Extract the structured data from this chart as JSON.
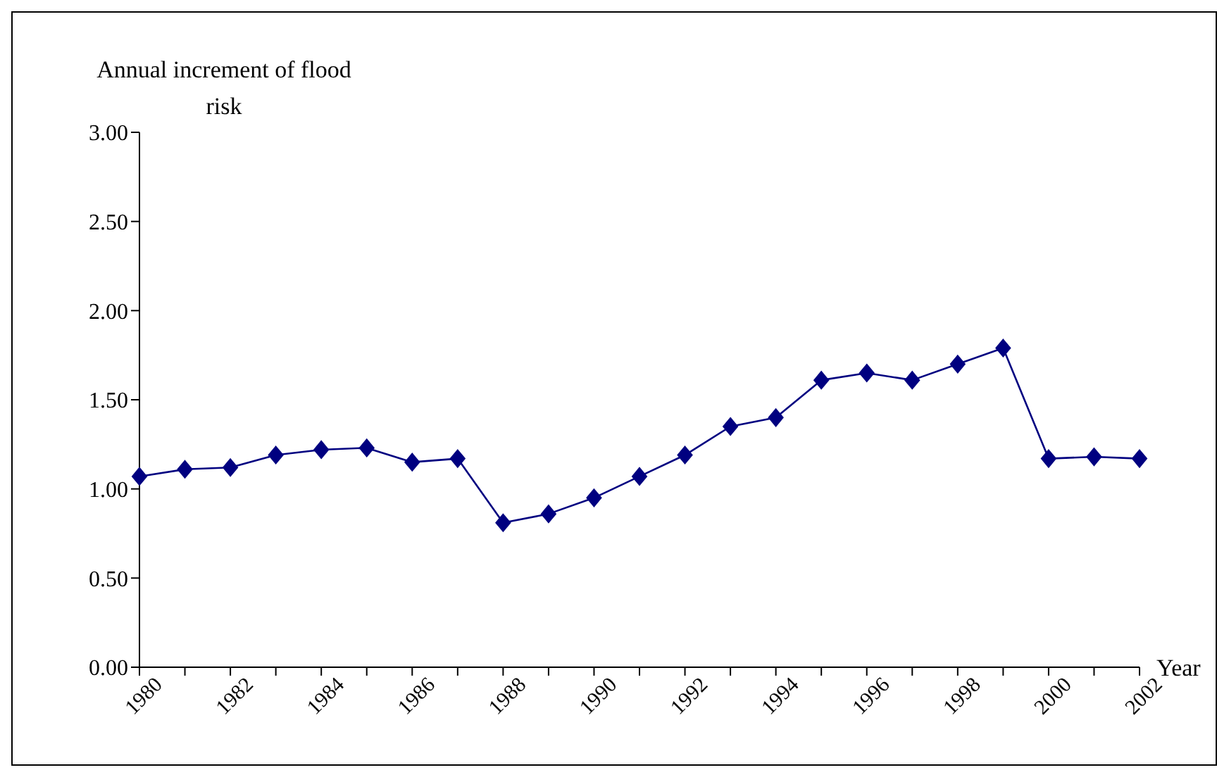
{
  "chart_data": {
    "type": "line",
    "ylabel": "Annual increment of flood risk",
    "xlabel": "Year",
    "categories": [
      "1980",
      null,
      "1982",
      null,
      "1984",
      null,
      "1986",
      null,
      "1988",
      null,
      "1990",
      null,
      "1992",
      null,
      "1994",
      null,
      "1996",
      null,
      "1998",
      null,
      "2000",
      null,
      "2002"
    ],
    "series": [
      {
        "color": "#000080",
        "values": [
          1.07,
          1.11,
          1.12,
          1.19,
          1.22,
          1.23,
          1.15,
          1.17,
          0.81,
          0.86,
          0.95,
          1.07,
          1.19,
          1.35,
          1.4,
          1.61,
          1.65,
          1.61,
          1.7,
          1.79,
          1.17,
          1.18,
          1.17
        ]
      }
    ],
    "ylim": [
      0,
      3
    ],
    "yticks": [
      {
        "value": 0,
        "label": "0.00"
      },
      {
        "value": 0.5,
        "label": "0.50"
      },
      {
        "value": 1,
        "label": "1.00"
      },
      {
        "value": 1.5,
        "label": "1.50"
      },
      {
        "value": 2,
        "label": "2.00"
      },
      {
        "value": 2.5,
        "label": "2.50"
      },
      {
        "value": 3,
        "label": "3.00"
      }
    ],
    "grid": false,
    "legend": false,
    "marker": "diamond",
    "line_style": "solid"
  }
}
